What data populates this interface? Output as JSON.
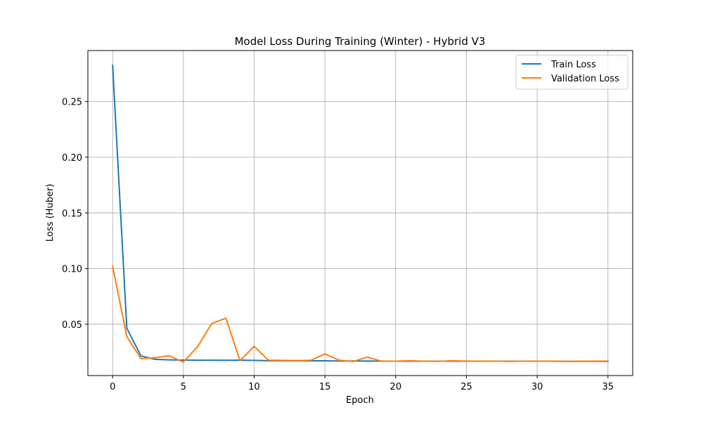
{
  "chart_data": {
    "type": "line",
    "title": "Model Loss During Training (Winter) - Hybrid V3",
    "xlabel": "Epoch",
    "ylabel": "Loss (Huber)",
    "x": [
      0,
      1,
      2,
      3,
      4,
      5,
      6,
      7,
      8,
      9,
      10,
      11,
      12,
      13,
      14,
      15,
      16,
      17,
      18,
      19,
      20,
      21,
      22,
      23,
      24,
      25,
      26,
      27,
      28,
      29,
      30,
      31,
      32,
      33,
      34,
      35
    ],
    "xlim": [
      -1.75,
      36.75
    ],
    "ylim": [
      0.0039,
      0.2958
    ],
    "xticks": [
      0,
      5,
      10,
      15,
      20,
      25,
      30,
      35
    ],
    "xtick_labels": [
      "0",
      "5",
      "10",
      "15",
      "20",
      "25",
      "30",
      "35"
    ],
    "yticks": [
      0.05,
      0.1,
      0.15,
      0.2,
      0.25
    ],
    "ytick_labels": [
      "0.05",
      "0.10",
      "0.15",
      "0.20",
      "0.25"
    ],
    "grid": true,
    "legend": "top-right",
    "series": [
      {
        "name": "Train Loss",
        "color": "#1f77b4",
        "values": [
          0.2825,
          0.0465,
          0.0215,
          0.0185,
          0.018,
          0.0178,
          0.0177,
          0.0177,
          0.0176,
          0.0177,
          0.0175,
          0.0172,
          0.0172,
          0.0171,
          0.0171,
          0.0171,
          0.017,
          0.017,
          0.0169,
          0.0169,
          0.0168,
          0.0168,
          0.0168,
          0.0168,
          0.0168,
          0.0168,
          0.0168,
          0.0168,
          0.0168,
          0.0168,
          0.0168,
          0.0168,
          0.0167,
          0.0167,
          0.0167,
          0.0167
        ]
      },
      {
        "name": "Validation Loss",
        "color": "#ff7f0e",
        "values": [
          0.102,
          0.039,
          0.019,
          0.02,
          0.0217,
          0.016,
          0.0299,
          0.0506,
          0.0555,
          0.0173,
          0.0302,
          0.0178,
          0.0175,
          0.0174,
          0.0176,
          0.0234,
          0.0178,
          0.0165,
          0.0205,
          0.0168,
          0.0168,
          0.0172,
          0.0168,
          0.0167,
          0.0172,
          0.0169,
          0.0168,
          0.0169,
          0.0167,
          0.0168,
          0.0168,
          0.0169,
          0.0167,
          0.0168,
          0.0168,
          0.0169
        ]
      }
    ]
  }
}
